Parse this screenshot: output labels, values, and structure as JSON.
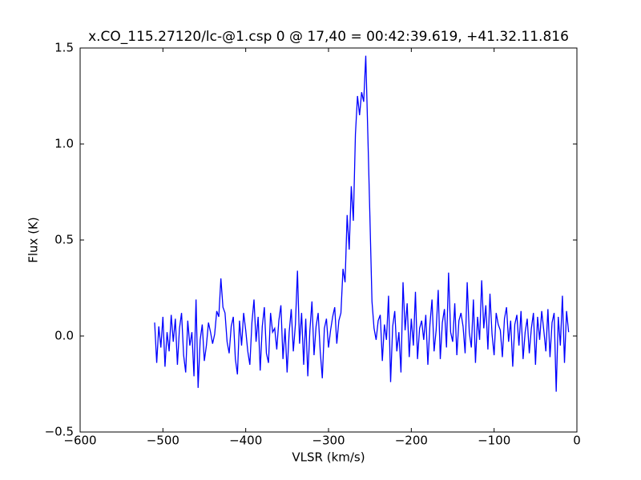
{
  "chart_data": {
    "type": "line",
    "title": "x.CO_115.27120/lc-@1.csp 0 @ 17,40 = 00:42:39.619, +41.32.11.816",
    "x_label": "VLSR (km/s)",
    "y_label": "Flux (K)",
    "xlim": [
      -600,
      0
    ],
    "ylim": [
      -0.5,
      1.5
    ],
    "xticks": [
      {
        "value": -600,
        "label": "−600"
      },
      {
        "value": -500,
        "label": "−500"
      },
      {
        "value": -400,
        "label": "−400"
      },
      {
        "value": -300,
        "label": "−300"
      },
      {
        "value": -200,
        "label": "−200"
      },
      {
        "value": -100,
        "label": "−100"
      },
      0
    ],
    "yticks": [
      {
        "value": -0.5,
        "label": "−0.5"
      },
      {
        "value": 0,
        "label": "0.0"
      },
      0.5,
      {
        "value": 1,
        "label": "1.0"
      },
      1.5
    ],
    "x": [
      -510,
      -507.5,
      -505,
      -502.5,
      -500,
      -497.5,
      -495,
      -492.5,
      -490,
      -487.5,
      -485,
      -482.5,
      -480,
      -477.5,
      -475,
      -472.5,
      -470,
      -467.5,
      -465,
      -462.5,
      -460,
      -457.5,
      -455,
      -452.5,
      -450,
      -447.5,
      -445,
      -442.5,
      -440,
      -437.5,
      -435,
      -432.5,
      -430,
      -427.5,
      -425,
      -422.5,
      -420,
      -417.5,
      -415,
      -412.5,
      -410,
      -407.5,
      -405,
      -402.5,
      -400,
      -397.5,
      -395,
      -392.5,
      -390,
      -387.5,
      -385,
      -382.5,
      -380,
      -377.5,
      -375,
      -372.5,
      -370,
      -367.5,
      -365,
      -362.5,
      -360,
      -357.5,
      -355,
      -352.5,
      -350,
      -347.5,
      -345,
      -342.5,
      -340,
      -337.5,
      -335,
      -332.5,
      -330,
      -327.5,
      -325,
      -322.5,
      -320,
      -317.5,
      -315,
      -312.5,
      -310,
      -307.5,
      -305,
      -302.5,
      -300,
      -297.5,
      -295,
      -292.5,
      -290,
      -287.5,
      -285,
      -282.5,
      -280,
      -277.5,
      -275,
      -272.5,
      -270,
      -267.5,
      -265,
      -262.5,
      -260,
      -257.5,
      -255,
      -252.5,
      -250,
      -247.5,
      -245,
      -242.5,
      -240,
      -237.5,
      -235,
      -232.5,
      -230,
      -227.5,
      -225,
      -222.5,
      -220,
      -217.5,
      -215,
      -212.5,
      -210,
      -207.5,
      -205,
      -202.5,
      -200,
      -197.5,
      -195,
      -192.5,
      -190,
      -187.5,
      -185,
      -182.5,
      -180,
      -177.5,
      -175,
      -172.5,
      -170,
      -167.5,
      -165,
      -162.5,
      -160,
      -157.5,
      -155,
      -152.5,
      -150,
      -147.5,
      -145,
      -142.5,
      -140,
      -137.5,
      -135,
      -132.5,
      -130,
      -127.5,
      -125,
      -122.5,
      -120,
      -117.5,
      -115,
      -112.5,
      -110,
      -107.5,
      -105,
      -102.5,
      -100,
      -97.5,
      -95,
      -92.5,
      -90,
      -87.5,
      -85,
      -82.5,
      -80,
      -77.5,
      -75,
      -72.5,
      -70,
      -67.5,
      -65,
      -62.5,
      -60,
      -57.5,
      -55,
      -52.5,
      -50,
      -47.5,
      -45,
      -42.5,
      -40,
      -37.5,
      -35,
      -32.5,
      -30,
      -27.5,
      -25,
      -22.5,
      -20,
      -17.5,
      -15,
      -12.5,
      -10
    ],
    "series": [
      {
        "color": "#0000ff",
        "values": [
          0.07,
          -0.14,
          0.05,
          -0.06,
          0.1,
          -0.16,
          0.02,
          -0.08,
          0.11,
          -0.03,
          0.09,
          -0.15,
          0.04,
          0.12,
          -0.1,
          -0.19,
          0.08,
          -0.05,
          0.02,
          -0.21,
          0.19,
          -0.27,
          -0.02,
          0.06,
          -0.13,
          -0.05,
          0.07,
          0.02,
          -0.04,
          0.01,
          0.13,
          0.1,
          0.3,
          0.15,
          0.12,
          -0.03,
          -0.09,
          0.05,
          0.1,
          -0.12,
          -0.2,
          0.08,
          -0.05,
          0.12,
          0.03,
          -0.08,
          -0.15,
          0.07,
          0.19,
          -0.03,
          0.1,
          -0.18,
          0.05,
          0.15,
          -0.09,
          -0.14,
          0.12,
          0.02,
          0.04,
          -0.07,
          0.08,
          0.16,
          -0.12,
          0.04,
          -0.19,
          0.02,
          0.14,
          -0.08,
          0.06,
          0.34,
          -0.04,
          0.12,
          -0.15,
          0.09,
          -0.21,
          0.03,
          0.18,
          -0.1,
          0.05,
          0.12,
          -0.08,
          -0.22,
          0.04,
          0.09,
          -0.06,
          0.03,
          0.1,
          0.15,
          -0.04,
          0.08,
          0.12,
          0.35,
          0.28,
          0.63,
          0.45,
          0.78,
          0.6,
          1.05,
          1.25,
          1.15,
          1.27,
          1.22,
          1.46,
          1.05,
          0.62,
          0.18,
          0.04,
          -0.02,
          0.08,
          0.11,
          -0.13,
          0.06,
          -0.02,
          0.21,
          -0.24,
          0.05,
          0.13,
          -0.08,
          0.02,
          -0.19,
          0.28,
          0.03,
          0.17,
          -0.11,
          0.09,
          -0.05,
          0.23,
          -0.12,
          0.04,
          0.08,
          -0.02,
          0.11,
          -0.15,
          0.06,
          0.19,
          -0.08,
          0.03,
          0.24,
          -0.12,
          0.07,
          0.14,
          -0.06,
          0.33,
          0.02,
          -0.03,
          0.17,
          -0.1,
          0.08,
          0.12,
          0.05,
          -0.09,
          0.28,
          0.02,
          -0.06,
          0.19,
          -0.14,
          0.1,
          -0.02,
          0.29,
          0.04,
          0.16,
          -0.07,
          0.22,
          0.01,
          -0.1,
          0.12,
          0.06,
          0.03,
          -0.11,
          0.09,
          0.15,
          -0.03,
          0.08,
          -0.16,
          0.06,
          0.11,
          -0.05,
          0.13,
          -0.12,
          0.02,
          0.09,
          -0.09,
          0.04,
          0.12,
          -0.15,
          0.1,
          -0.02,
          0.13,
          0.03,
          -0.08,
          0.14,
          -0.11,
          0.07,
          0.12,
          -0.29,
          0.1,
          -0.05,
          0.21,
          -0.14,
          0.13,
          0.02
        ]
      }
    ]
  }
}
